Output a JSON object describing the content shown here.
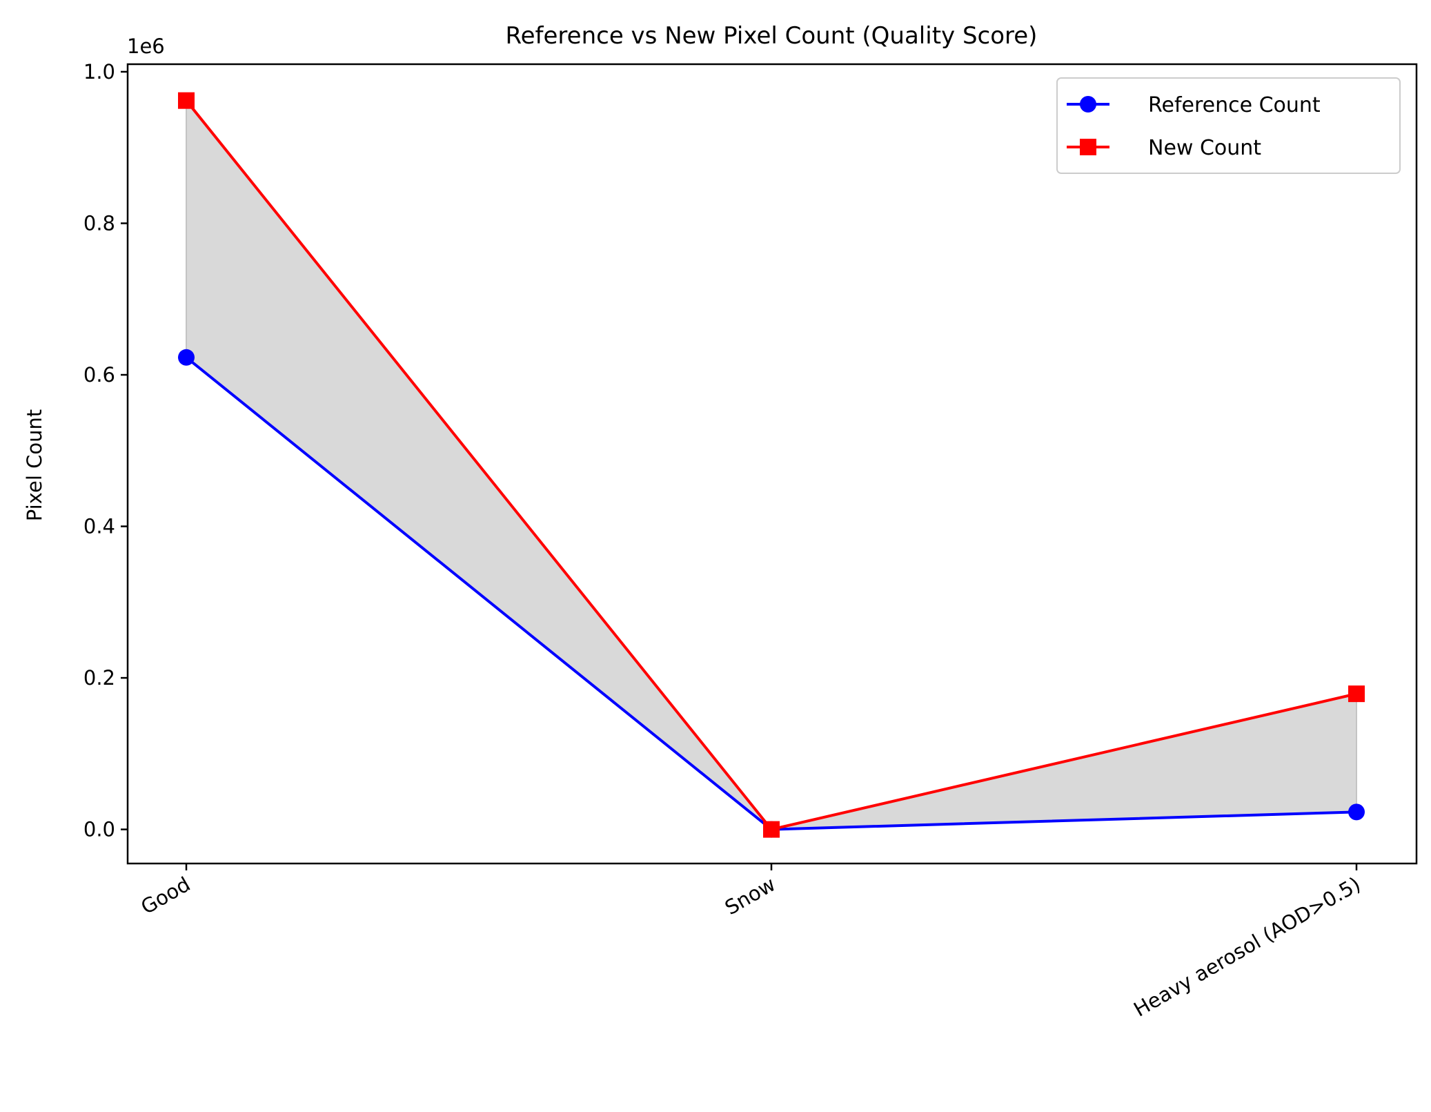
{
  "chart_data": {
    "type": "line",
    "title": "Reference vs New Pixel Count (Quality Score)",
    "xlabel": "",
    "ylabel": "Pixel Count",
    "y_scale_label": "1e6",
    "categories": [
      "Good",
      "Snow",
      "Heavy aerosol (AOD>0.5)"
    ],
    "y_ticks": [
      0.0,
      0.2,
      0.4,
      0.6,
      0.8,
      1.0
    ],
    "y_tick_labels": [
      "0.0",
      "0.2",
      "0.4",
      "0.6",
      "0.8",
      "1.0"
    ],
    "ylim": [
      -45000,
      1010000
    ],
    "grid": false,
    "legend_position": "top-right",
    "fill_between": {
      "color": "#d9d9d9"
    },
    "series": [
      {
        "name": "Reference Count",
        "values": [
          623000,
          0,
          23000
        ],
        "color": "#0000ff",
        "marker": "circle"
      },
      {
        "name": "New Count",
        "values": [
          962000,
          0,
          179000
        ],
        "color": "#ff0000",
        "marker": "square"
      }
    ]
  }
}
